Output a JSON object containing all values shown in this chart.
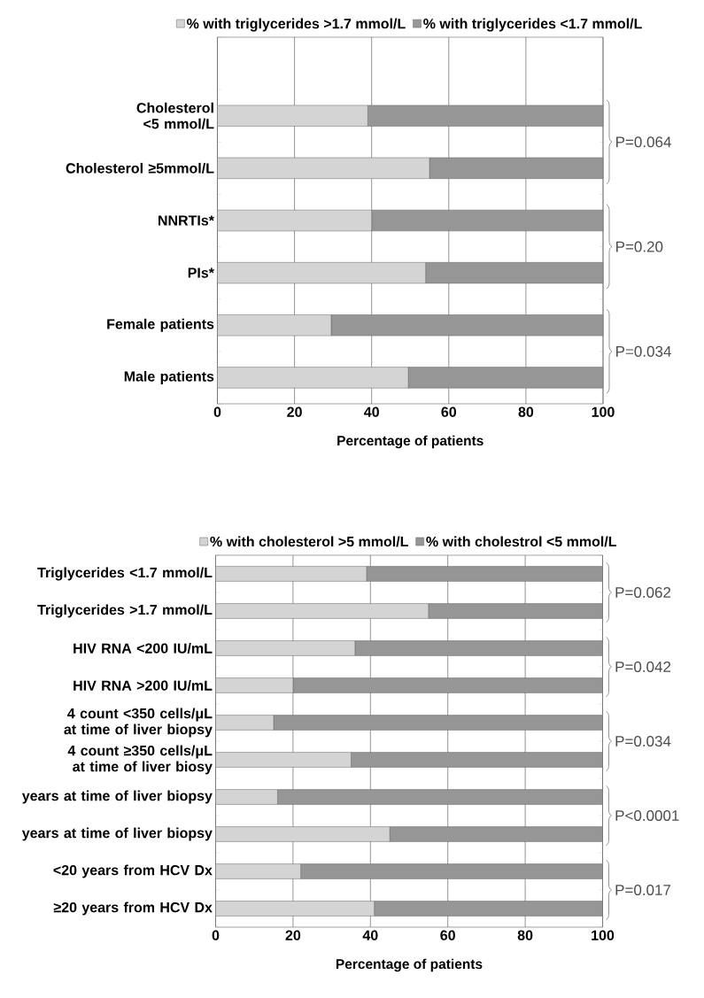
{
  "chart_data": [
    {
      "type": "bar",
      "orientation": "horizontal",
      "stacked": true,
      "categories": [
        null,
        "Cholesterol <5 mmol/L",
        "Cholesterol ≥5mmol/L",
        "NNRTIs*",
        "PIs*",
        "Female patients",
        "Male patients"
      ],
      "series": [
        {
          "name": "% with triglycerides >1.7 mmol/L",
          "color": "#d4d4d4",
          "values": [
            null,
            39,
            55,
            40,
            54,
            29.5,
            49.5
          ]
        },
        {
          "name": "% with triglycerides <1.7 mmol/L",
          "color": "#969696",
          "values": [
            null,
            61,
            45,
            60,
            46,
            70.5,
            50.5
          ]
        }
      ],
      "xlabel": "Percentage of patients",
      "xlim": [
        0,
        100
      ],
      "xticks": [
        0,
        20,
        40,
        60,
        80,
        100
      ],
      "grid": "x",
      "legend": "top",
      "annotations": [
        "P=0.064",
        "P=0.20",
        "P=0.034"
      ]
    },
    {
      "type": "bar",
      "orientation": "horizontal",
      "stacked": true,
      "categories": [
        "Triglycerides <1.7 mmol/L",
        "Triglycerides >1.7 mmol/L",
        "HIV RNA <200 IU/mL",
        "HIV RNA >200 IU/mL",
        "4 count <350 cells/μL at time of liver biopsy",
        "4 count ≥350 cells/μL at time of liver biosy",
        "years at time of liver biopsy",
        "years at time of liver biopsy",
        "<20 years from HCV Dx",
        "≥20 years from HCV Dx"
      ],
      "series": [
        {
          "name": "% with cholesterol >5 mmol/L",
          "color": "#d4d4d4",
          "values": [
            39,
            55,
            36,
            20,
            15,
            35,
            16,
            45,
            22,
            41
          ]
        },
        {
          "name": "% with cholestrol <5 mmol/L",
          "color": "#969696",
          "values": [
            61,
            45,
            64,
            80,
            85,
            65,
            84,
            55,
            78,
            59
          ]
        }
      ],
      "xlabel": "Percentage of patients",
      "xlim": [
        0,
        100
      ],
      "xticks": [
        0,
        20,
        40,
        60,
        80,
        100
      ],
      "grid": "x",
      "legend": "top",
      "annotations": [
        "P=0.062",
        "P=0.042",
        "P=0.034",
        "P<0.0001",
        "P=0.017"
      ]
    }
  ]
}
